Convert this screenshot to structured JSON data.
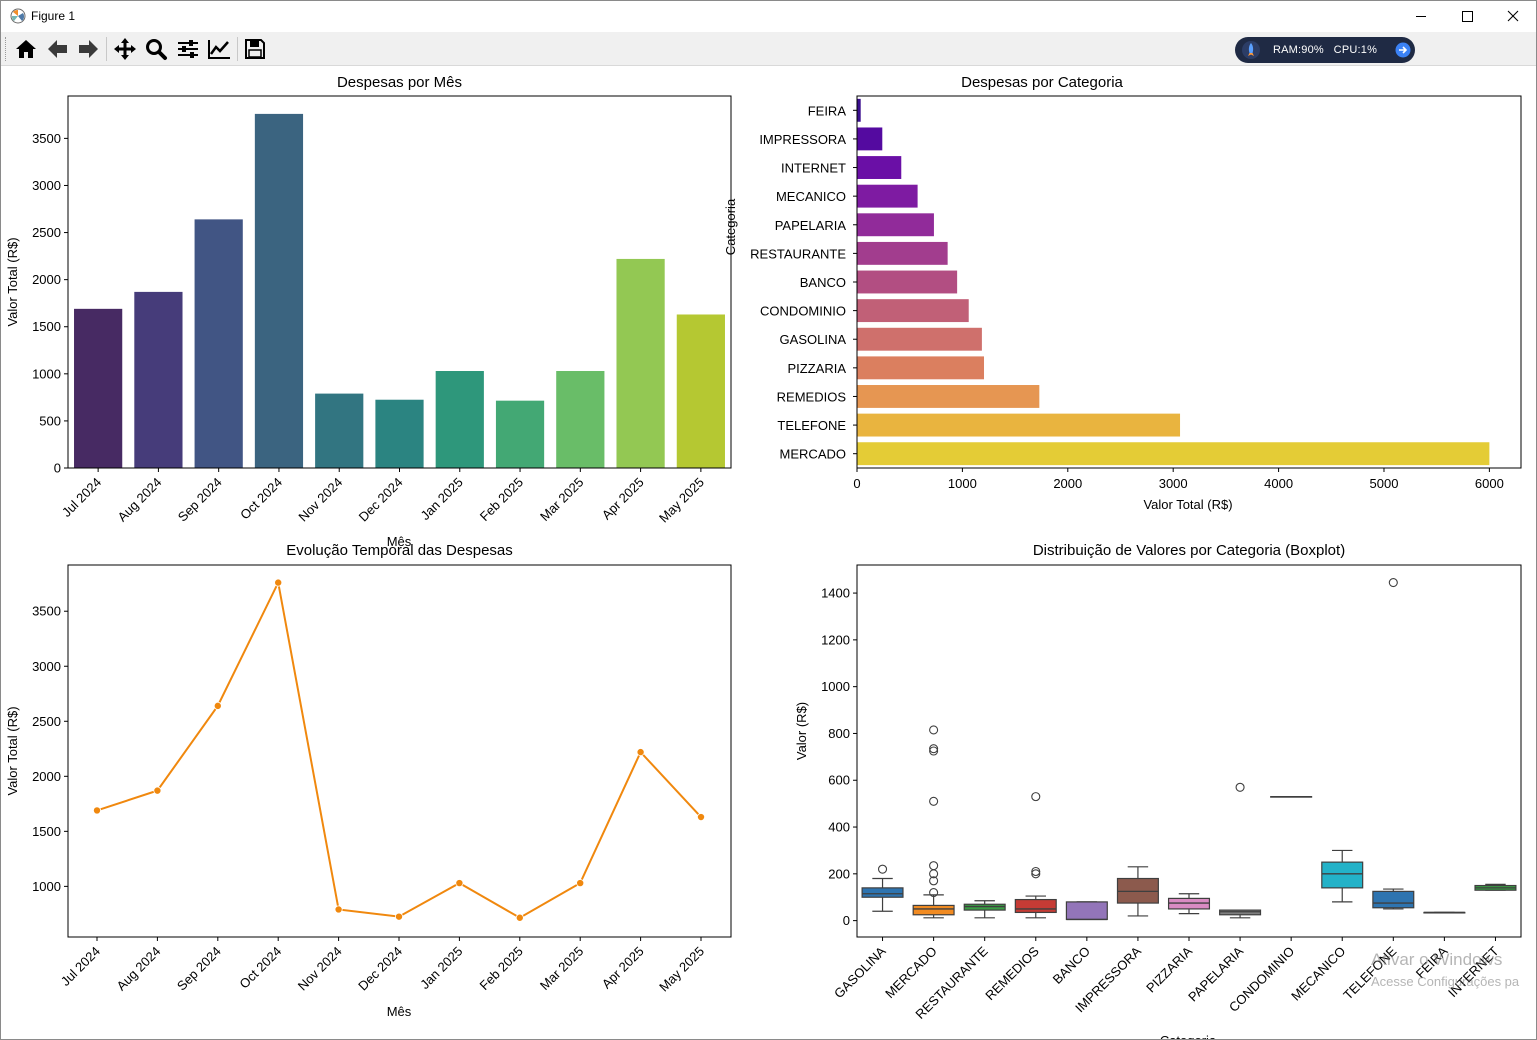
{
  "window": {
    "title": "Figure 1",
    "controls": [
      "minimize",
      "maximize",
      "close"
    ]
  },
  "toolbar": {
    "buttons": [
      {
        "name": "home",
        "icon": "home-icon"
      },
      {
        "name": "back",
        "icon": "arrow-left-icon"
      },
      {
        "name": "forward",
        "icon": "arrow-right-icon"
      },
      {
        "name": "pan",
        "icon": "move-icon"
      },
      {
        "name": "zoom",
        "icon": "magnifier-icon"
      },
      {
        "name": "configure-subplots",
        "icon": "sliders-icon"
      },
      {
        "name": "edit-axis",
        "icon": "line-chart-icon"
      },
      {
        "name": "save",
        "icon": "floppy-icon"
      }
    ],
    "perf_widget": {
      "text": "RAM:90%   CPU:1%",
      "icon": "rocket-icon",
      "arrow_icon": "arrow-right-circle-icon",
      "bg": "#1f2a44",
      "accent": "#3b82f6"
    }
  },
  "watermark": {
    "line1": "Ativar o Windows",
    "line2": "Acesse Configurações pa"
  },
  "chart_data": [
    {
      "type": "bar",
      "title": "Despesas por Mês",
      "xlabel": "Mês",
      "ylabel": "Valor Total (R$)",
      "categories": [
        "Jul 2024",
        "Aug 2024",
        "Sep 2024",
        "Oct 2024",
        "Nov 2024",
        "Dec 2024",
        "Jan 2025",
        "Feb 2025",
        "Mar 2025",
        "Apr 2025",
        "May 2025"
      ],
      "values": [
        1690,
        1870,
        2640,
        3760,
        790,
        725,
        1030,
        715,
        1030,
        2220,
        1630
      ],
      "colors": [
        "#472a63",
        "#463c7a",
        "#415584",
        "#3b6480",
        "#327581",
        "#2b8481",
        "#2e977b",
        "#43a874",
        "#69bd68",
        "#93c853",
        "#b5c832"
      ],
      "ylim": [
        0,
        3950
      ],
      "yticks": [
        0,
        500,
        1000,
        1500,
        2000,
        2500,
        3000,
        3500
      ],
      "grid": false
    },
    {
      "type": "bar",
      "orientation": "horizontal",
      "title": "Despesas por Categoria",
      "xlabel": "Valor Total (R$)",
      "ylabel": "Categoria",
      "categories": [
        "FEIRA",
        "IMPRESSORA",
        "INTERNET",
        "MECANICO",
        "PAPELARIA",
        "RESTAURANTE",
        "BANCO",
        "CONDOMINIO",
        "GASOLINA",
        "PIZZARIA",
        "REMEDIOS",
        "TELEFONE",
        "MERCADO"
      ],
      "values": [
        35,
        240,
        420,
        575,
        730,
        860,
        950,
        1060,
        1185,
        1205,
        1730,
        3065,
        6000
      ],
      "colors": [
        "#3a0e8e",
        "#540aa0",
        "#6a0fa6",
        "#7e1ba2",
        "#912b9a",
        "#a23d8e",
        "#b24e82",
        "#c16077",
        "#cf706c",
        "#db7f5f",
        "#e69652",
        "#e9b43f",
        "#e4cc36"
      ],
      "xlim": [
        0,
        6300
      ],
      "xticks": [
        0,
        1000,
        2000,
        3000,
        4000,
        5000,
        6000
      ],
      "grid": false
    },
    {
      "type": "line",
      "title": "Evolução Temporal das Despesas",
      "xlabel": "Mês",
      "ylabel": "Valor Total (R$)",
      "x": [
        "Jul 2024",
        "Aug 2024",
        "Sep 2024",
        "Oct 2024",
        "Nov 2024",
        "Dec 2024",
        "Jan 2025",
        "Feb 2025",
        "Mar 2025",
        "Apr 2025",
        "May 2025"
      ],
      "y": [
        1690,
        1870,
        2640,
        3760,
        790,
        725,
        1030,
        715,
        1030,
        2220,
        1630
      ],
      "color": "#f0880e",
      "ylim": [
        540,
        3920
      ],
      "yticks": [
        1000,
        1500,
        2000,
        2500,
        3000,
        3500
      ],
      "grid": false
    },
    {
      "type": "boxplot",
      "title": "Distribuição de Valores por Categoria (Boxplot)",
      "xlabel": "Categoria",
      "ylabel": "Valor (R$)",
      "ylim": [
        -70,
        1520
      ],
      "yticks": [
        0,
        200,
        400,
        600,
        800,
        1000,
        1200,
        1400
      ],
      "grid": false,
      "categories": [
        {
          "name": "GASOLINA",
          "color": "#2e74b0",
          "whislo": 40,
          "q1": 100,
          "med": 115,
          "q3": 140,
          "whishi": 180,
          "fliers": [
            220
          ]
        },
        {
          "name": "MERCADO",
          "color": "#f18b22",
          "whislo": 12,
          "q1": 25,
          "med": 50,
          "q3": 65,
          "whishi": 110,
          "fliers": [
            120,
            170,
            200,
            235,
            510,
            725,
            735,
            815
          ]
        },
        {
          "name": "RESTAURANTE",
          "color": "#3a9d44",
          "whislo": 12,
          "q1": 45,
          "med": 60,
          "q3": 70,
          "whishi": 85,
          "fliers": []
        },
        {
          "name": "REMEDIOS",
          "color": "#c63b35",
          "whislo": 12,
          "q1": 35,
          "med": 50,
          "q3": 90,
          "whishi": 105,
          "fliers": [
            200,
            210,
            530
          ]
        },
        {
          "name": "BANCO",
          "color": "#9375b9",
          "whislo": 5,
          "q1": 5,
          "med": 5,
          "q3": 80,
          "whishi": 80,
          "fliers": []
        },
        {
          "name": "IMPRESSORA",
          "color": "#8c5a4d",
          "whislo": 20,
          "q1": 75,
          "med": 125,
          "q3": 180,
          "whishi": 230,
          "fliers": []
        },
        {
          "name": "PIZZARIA",
          "color": "#da8bc3",
          "whislo": 30,
          "q1": 50,
          "med": 75,
          "q3": 95,
          "whishi": 115,
          "fliers": []
        },
        {
          "name": "PAPELARIA",
          "color": "#808080",
          "whislo": 12,
          "q1": 25,
          "med": 38,
          "q3": 45,
          "whishi": 45,
          "fliers": [
            570
          ]
        },
        {
          "name": "CONDOMINIO",
          "color": "#bcbd22",
          "whislo": 530,
          "q1": 530,
          "med": 530,
          "q3": 530,
          "whishi": 530,
          "fliers": []
        },
        {
          "name": "MECANICO",
          "color": "#23b2c8",
          "whislo": 80,
          "q1": 140,
          "med": 200,
          "q3": 250,
          "whishi": 300,
          "fliers": []
        },
        {
          "name": "TELEFONE",
          "color": "#2e74b0",
          "whislo": 50,
          "q1": 55,
          "med": 75,
          "q3": 125,
          "whishi": 135,
          "fliers": [
            1445
          ]
        },
        {
          "name": "FEIRA",
          "color": "#f18b22",
          "whislo": 35,
          "q1": 35,
          "med": 35,
          "q3": 35,
          "whishi": 35,
          "fliers": []
        },
        {
          "name": "INTERNET",
          "color": "#3a9d44",
          "whislo": 130,
          "q1": 130,
          "med": 140,
          "q3": 150,
          "whishi": 155,
          "fliers": []
        }
      ]
    }
  ]
}
